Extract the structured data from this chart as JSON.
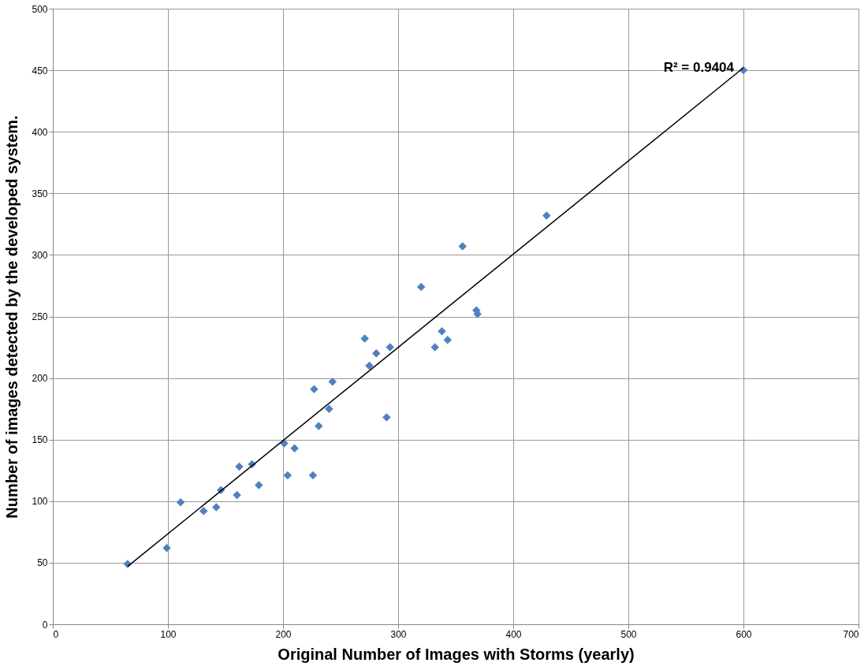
{
  "chart_data": {
    "type": "scatter",
    "xlabel": "Original Number of Images with Storms (yearly)",
    "ylabel": "Number of images detected by the developed system.",
    "xlim": [
      0,
      700
    ],
    "xticks": [
      0,
      100,
      200,
      300,
      400,
      500,
      600,
      700
    ],
    "ylim": [
      0,
      500
    ],
    "yticks": [
      0,
      50,
      100,
      150,
      200,
      250,
      300,
      350,
      400,
      450,
      500
    ],
    "grid": true,
    "series": [
      {
        "color": "#4f81bd",
        "marker": "diamond",
        "x": [
          65,
          99,
          111,
          131,
          142,
          146,
          160,
          162,
          173,
          179,
          201,
          204,
          210,
          226,
          227,
          231,
          240,
          243,
          271,
          275,
          281,
          293,
          290,
          320,
          332,
          338,
          343,
          356,
          368,
          369,
          429,
          600
        ],
        "values": [
          49,
          62,
          99,
          92,
          95,
          109,
          105,
          128,
          130,
          113,
          147,
          121,
          143,
          121,
          191,
          161,
          175,
          197,
          232,
          210,
          220,
          225,
          168,
          274,
          225,
          238,
          231,
          307,
          255,
          252,
          332,
          450
        ]
      },
      {
        "type": "line",
        "color": "#000000",
        "marker": "none",
        "line_style": "solid",
        "x": [
          65,
          600
        ],
        "values": [
          47,
          452
        ]
      }
    ],
    "annotations": [
      {
        "text": "R² = 0.9404",
        "x": 600,
        "y": 452
      }
    ]
  }
}
